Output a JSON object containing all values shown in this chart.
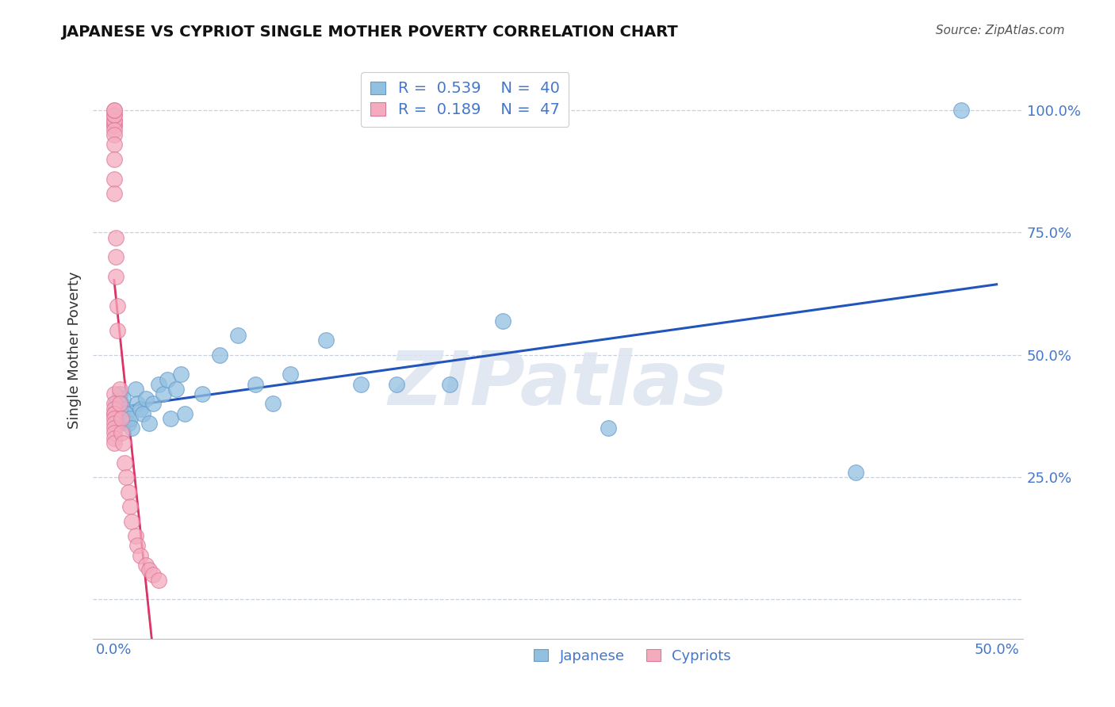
{
  "title": "JAPANESE VS CYPRIOT SINGLE MOTHER POVERTY CORRELATION CHART",
  "source": "Source: ZipAtlas.com",
  "ylabel": "Single Mother Poverty",
  "watermark": "ZIPatlas",
  "legend_r_japanese": "0.539",
  "legend_n_japanese": "40",
  "legend_r_cypriot": "0.189",
  "legend_n_cypriot": "47",
  "legend_label_japanese": "Japanese",
  "legend_label_cypriot": "Cypriots",
  "japanese_color": "#92c0e0",
  "cypriot_color": "#f4abbe",
  "japanese_edge": "#6699cc",
  "cypriot_edge": "#dd7799",
  "trendline_japanese_color": "#2255bb",
  "trendline_cypriot_solid": "#dd3366",
  "trendline_cypriot_dashed": "#e8a0b8",
  "grid_color": "#c8d0dc",
  "background": "#ffffff",
  "jp_x": [
    0.001,
    0.001,
    0.002,
    0.003,
    0.003,
    0.004,
    0.005,
    0.006,
    0.007,
    0.008,
    0.009,
    0.01,
    0.012,
    0.013,
    0.015,
    0.016,
    0.018,
    0.02,
    0.022,
    0.025,
    0.028,
    0.03,
    0.032,
    0.035,
    0.038,
    0.04,
    0.05,
    0.06,
    0.07,
    0.08,
    0.09,
    0.1,
    0.12,
    0.14,
    0.16,
    0.19,
    0.22,
    0.28,
    0.42,
    0.48
  ],
  "jp_y": [
    0.38,
    0.4,
    0.37,
    0.42,
    0.36,
    0.4,
    0.41,
    0.39,
    0.38,
    0.36,
    0.37,
    0.35,
    0.43,
    0.4,
    0.39,
    0.38,
    0.41,
    0.36,
    0.4,
    0.44,
    0.42,
    0.45,
    0.37,
    0.43,
    0.46,
    0.38,
    0.42,
    0.5,
    0.54,
    0.44,
    0.4,
    0.46,
    0.53,
    0.44,
    0.44,
    0.44,
    0.57,
    0.35,
    0.26,
    1.0
  ],
  "cy_x": [
    0.0,
    0.0,
    0.0,
    0.0,
    0.0,
    0.0,
    0.0,
    0.0,
    0.0,
    0.0,
    0.0,
    0.0,
    0.0,
    0.0,
    0.0,
    0.0,
    0.0,
    0.0,
    0.0,
    0.0,
    0.0,
    0.0,
    0.0,
    0.0,
    0.0,
    0.001,
    0.001,
    0.001,
    0.002,
    0.002,
    0.003,
    0.003,
    0.004,
    0.004,
    0.005,
    0.006,
    0.007,
    0.008,
    0.009,
    0.01,
    0.012,
    0.013,
    0.015,
    0.018,
    0.02,
    0.022,
    0.025
  ],
  "cy_y": [
    0.97,
    0.97,
    0.98,
    0.98,
    0.99,
    0.99,
    1.0,
    1.0,
    0.96,
    0.95,
    0.93,
    0.9,
    0.86,
    0.83,
    0.42,
    0.4,
    0.39,
    0.38,
    0.38,
    0.37,
    0.36,
    0.35,
    0.34,
    0.33,
    0.32,
    0.74,
    0.7,
    0.66,
    0.6,
    0.55,
    0.43,
    0.4,
    0.37,
    0.34,
    0.32,
    0.28,
    0.25,
    0.22,
    0.19,
    0.16,
    0.13,
    0.11,
    0.09,
    0.07,
    0.06,
    0.05,
    0.04
  ],
  "xlim": [
    -0.012,
    0.515
  ],
  "ylim": [
    -0.08,
    1.1
  ],
  "xticks": [
    0.0,
    0.1,
    0.2,
    0.3,
    0.4,
    0.5
  ],
  "yticks": [
    0.0,
    0.25,
    0.5,
    0.75,
    1.0
  ]
}
